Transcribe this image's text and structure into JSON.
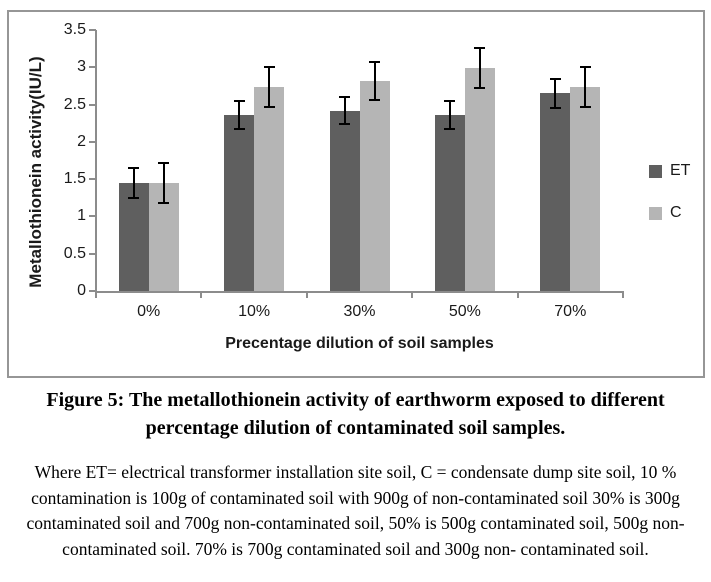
{
  "chart_data": {
    "type": "bar",
    "title": "",
    "categories": [
      "0%",
      "10%",
      "30%",
      "50%",
      "70%"
    ],
    "series": [
      {
        "name": "ET",
        "color": "#5f5f5f",
        "values": [
          1.45,
          2.36,
          2.42,
          2.36,
          2.65
        ],
        "errors": [
          0.21,
          0.2,
          0.2,
          0.2,
          0.21
        ]
      },
      {
        "name": "C",
        "color": "#b5b5b5",
        "values": [
          1.45,
          2.74,
          2.82,
          2.99,
          2.74
        ],
        "errors": [
          0.28,
          0.28,
          0.27,
          0.28,
          0.28
        ]
      }
    ],
    "xlabel": "Precentage dilution of soil samples",
    "ylabel": "Metallothionein activity(IU/L)",
    "ylim": [
      0,
      3.5
    ],
    "yticks": [
      "0",
      "0.5",
      "1",
      "1.5",
      "2",
      "2.5",
      "3",
      "3.5"
    ],
    "grid": false,
    "legend_position": "right",
    "error_bar_color": "#000000",
    "axis_color": "#8c8c8c"
  },
  "caption": {
    "title": "Figure 5: The metallothionein activity of earthworm exposed to different percentage dilution of contaminated soil samples.",
    "body": "Where ET= electrical transformer installation site soil, C = condensate dump site soil, 10 % contamination is 100g of contaminated soil with 900g of non-contaminated soil 30% is 300g contaminated soil and 700g non-contaminated soil, 50% is 500g contaminated soil, 500g non-contaminated soil. 70% is 700g contaminated soil and 300g non- contaminated soil."
  }
}
